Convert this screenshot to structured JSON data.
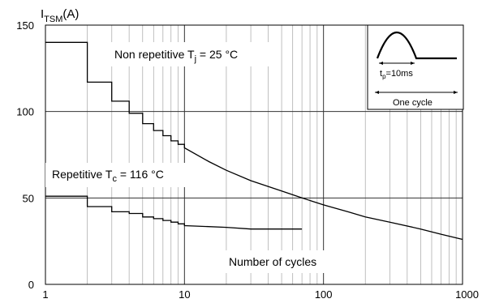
{
  "chart_data": {
    "type": "line",
    "title": "",
    "ylabel_main": "I",
    "ylabel_sub": "TSM",
    "ylabel_unit": "(A)",
    "xlabel": "Number of cycles",
    "x_scale": "log",
    "xlim": [
      1,
      1000
    ],
    "ylim": [
      0,
      150
    ],
    "grid": true,
    "x_ticks": [
      {
        "value": 1,
        "label": "1"
      },
      {
        "value": 10,
        "label": "10"
      },
      {
        "value": 100,
        "label": "100"
      },
      {
        "value": 1000,
        "label": "1000"
      }
    ],
    "y_ticks": [
      {
        "value": 0,
        "label": "0"
      },
      {
        "value": 50,
        "label": "50"
      },
      {
        "value": 100,
        "label": "100"
      },
      {
        "value": 150,
        "label": "150"
      }
    ],
    "series": [
      {
        "name": "Non repetitive Tj = 25 °C",
        "name_main": "Non repetitive T",
        "name_sub": "j",
        "name_tail": " = 25 °C",
        "step_x": [
          1,
          2,
          3,
          4,
          5,
          6,
          7,
          8,
          9,
          10
        ],
        "step_y": [
          140,
          117,
          106,
          99,
          93,
          89,
          86,
          83,
          81,
          79
        ],
        "curve_x": [
          10,
          15,
          20,
          30,
          50,
          70,
          100,
          150,
          200,
          300,
          500,
          700,
          1000
        ],
        "curve_y": [
          79,
          71,
          66,
          60,
          54,
          50,
          46,
          42,
          39,
          36,
          32,
          29,
          26
        ]
      },
      {
        "name": "Repetitive Tc = 116 °C",
        "name_main": "Repetitive T",
        "name_sub": "c",
        "name_tail": " = 116 °C",
        "step_x": [
          1,
          2,
          3,
          4,
          5,
          6,
          7,
          8,
          9,
          10
        ],
        "step_y": [
          51,
          45,
          42,
          41,
          39,
          38,
          37,
          36,
          35,
          34
        ],
        "curve_x": [
          10,
          20,
          30,
          50,
          70
        ],
        "curve_y": [
          34,
          33,
          32,
          32,
          32
        ]
      }
    ],
    "inset": {
      "label_tp_main": "t",
      "label_tp_sub": "p",
      "label_tp_tail": "=10ms",
      "label_cycle": "One cycle"
    }
  }
}
